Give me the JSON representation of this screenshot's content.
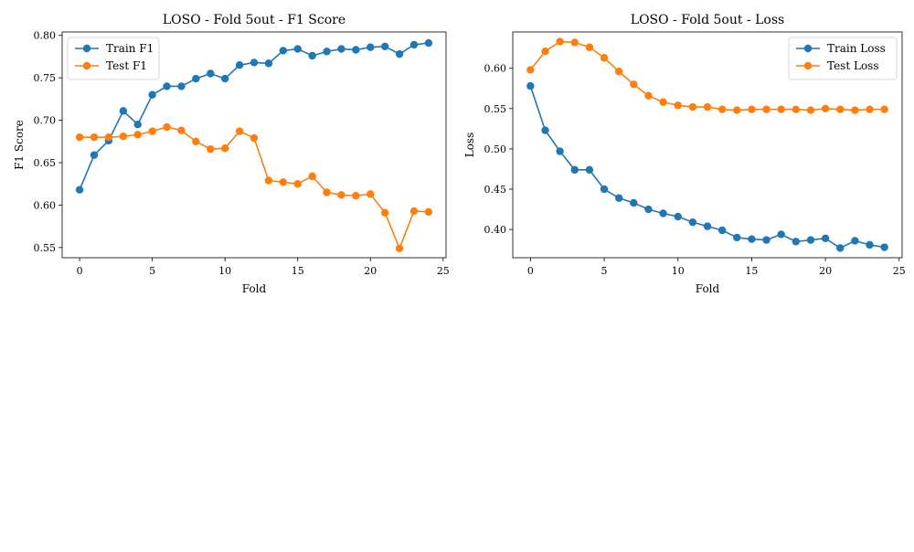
{
  "chart_data": [
    {
      "type": "line",
      "title": "LOSO - Fold 5out - F1 Score",
      "xlabel": "Fold",
      "ylabel": "F1 Score",
      "xlim": [
        -1.2,
        25.2
      ],
      "ylim": [
        0.538,
        0.804
      ],
      "xticks": [
        0,
        5,
        10,
        15,
        20,
        25
      ],
      "yticks": [
        0.55,
        0.6,
        0.65,
        0.7,
        0.75,
        0.8
      ],
      "ytick_decimals": 2,
      "grid": false,
      "legend_position": "top-left",
      "x": [
        0,
        1,
        2,
        3,
        4,
        5,
        6,
        7,
        8,
        9,
        10,
        11,
        12,
        13,
        14,
        15,
        16,
        17,
        18,
        19,
        20,
        21,
        22,
        23,
        24
      ],
      "series": [
        {
          "name": "Train F1",
          "color": "#1f77b4",
          "values": [
            0.618,
            0.659,
            0.676,
            0.711,
            0.695,
            0.73,
            0.74,
            0.74,
            0.749,
            0.755,
            0.749,
            0.765,
            0.768,
            0.767,
            0.782,
            0.784,
            0.776,
            0.781,
            0.784,
            0.783,
            0.786,
            0.787,
            0.778,
            0.789,
            0.791
          ]
        },
        {
          "name": "Test F1",
          "color": "#ff7f0e",
          "values": [
            0.68,
            0.68,
            0.68,
            0.681,
            0.683,
            0.687,
            0.692,
            0.688,
            0.675,
            0.666,
            0.667,
            0.687,
            0.679,
            0.629,
            0.627,
            0.625,
            0.634,
            0.615,
            0.612,
            0.611,
            0.613,
            0.591,
            0.549,
            0.593,
            0.592
          ]
        }
      ]
    },
    {
      "type": "line",
      "title": "LOSO - Fold 5out - Loss",
      "xlabel": "Fold",
      "ylabel": "Loss",
      "xlim": [
        -1.2,
        25.2
      ],
      "ylim": [
        0.365,
        0.645
      ],
      "xticks": [
        0,
        5,
        10,
        15,
        20,
        25
      ],
      "yticks": [
        0.4,
        0.45,
        0.5,
        0.55,
        0.6
      ],
      "ytick_decimals": 2,
      "grid": false,
      "legend_position": "top-right",
      "x": [
        0,
        1,
        2,
        3,
        4,
        5,
        6,
        7,
        8,
        9,
        10,
        11,
        12,
        13,
        14,
        15,
        16,
        17,
        18,
        19,
        20,
        21,
        22,
        23,
        24
      ],
      "series": [
        {
          "name": "Train Loss",
          "color": "#1f77b4",
          "values": [
            0.578,
            0.523,
            0.497,
            0.474,
            0.474,
            0.45,
            0.439,
            0.433,
            0.425,
            0.42,
            0.416,
            0.409,
            0.404,
            0.399,
            0.39,
            0.388,
            0.387,
            0.394,
            0.385,
            0.387,
            0.389,
            0.377,
            0.386,
            0.381,
            0.378
          ]
        },
        {
          "name": "Test Loss",
          "color": "#ff7f0e",
          "values": [
            0.598,
            0.621,
            0.633,
            0.632,
            0.626,
            0.613,
            0.596,
            0.58,
            0.566,
            0.558,
            0.554,
            0.552,
            0.552,
            0.549,
            0.548,
            0.549,
            0.549,
            0.549,
            0.549,
            0.548,
            0.55,
            0.549,
            0.548,
            0.549,
            0.549
          ]
        }
      ]
    }
  ]
}
